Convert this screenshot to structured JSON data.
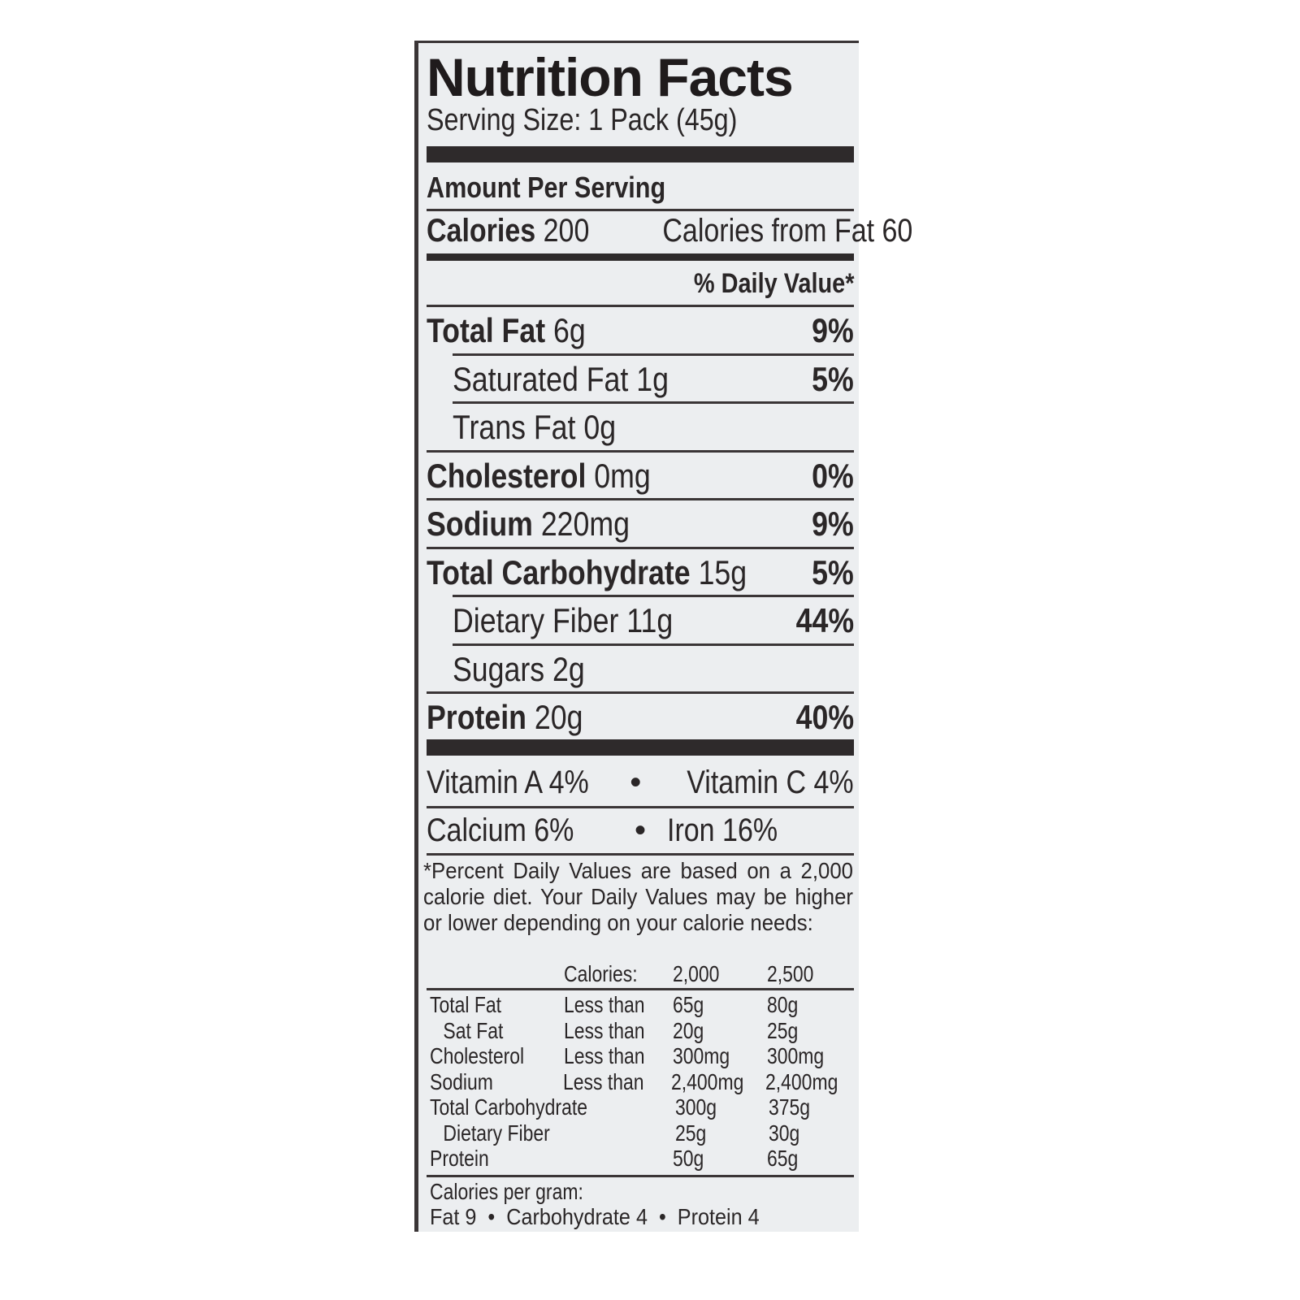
{
  "title": "Nutrition Facts",
  "serving_size": "Serving Size: 1 Pack (45g)",
  "amount_per_serving": "Amount Per Serving",
  "calories": {
    "label": "Calories",
    "value": "200",
    "from_fat": "Calories from Fat 60"
  },
  "daily_value_header": "% Daily Value*",
  "nutrients": [
    {
      "name": "Total Fat",
      "amount": "6g",
      "dv": "9%",
      "bold": true,
      "indent": false
    },
    {
      "name": "Saturated Fat",
      "amount": "1g",
      "dv": "5%",
      "bold": false,
      "indent": true
    },
    {
      "name": "Trans Fat",
      "amount": "0g",
      "dv": "",
      "bold": false,
      "indent": true
    },
    {
      "name": "Cholesterol",
      "amount": "0mg",
      "dv": "0%",
      "bold": true,
      "indent": false
    },
    {
      "name": "Sodium",
      "amount": "220mg",
      "dv": "9%",
      "bold": true,
      "indent": false
    },
    {
      "name": "Total Carbohydrate",
      "amount": "15g",
      "dv": "5%",
      "bold": true,
      "indent": false
    },
    {
      "name": "Dietary Fiber",
      "amount": "11g",
      "dv": "44%",
      "bold": false,
      "indent": true
    },
    {
      "name": "Sugars",
      "amount": "2g",
      "dv": "",
      "bold": false,
      "indent": true
    },
    {
      "name": "Protein",
      "amount": "20g",
      "dv": "40%",
      "bold": true,
      "indent": false
    }
  ],
  "vitamins": [
    {
      "left": "Vitamin A 4%",
      "right": "Vitamin C 4%"
    },
    {
      "left": "Calcium 6%",
      "right": "Iron 16%"
    }
  ],
  "bullet": "•",
  "footnote": "*Percent Daily Values are based on a 2,000 calorie diet. Your Daily Values may be higher or lower depending on your calorie needs:",
  "dv_table": {
    "header": [
      "",
      "Calories:",
      "2,000",
      "2,500"
    ],
    "rows": [
      [
        "Total Fat",
        "Less than",
        "65g",
        "80g"
      ],
      [
        "Sat Fat",
        "Less than",
        "20g",
        "25g"
      ],
      [
        "Cholesterol",
        "Less than",
        "300mg",
        "300mg"
      ],
      [
        "Sodium",
        "Less than",
        "2,400mg",
        "2,400mg"
      ],
      [
        "Total Carbohydrate",
        "",
        "300g",
        "375g"
      ],
      [
        "Dietary Fiber",
        "",
        "25g",
        "30g"
      ],
      [
        "Protein",
        "",
        "50g",
        "65g"
      ]
    ]
  },
  "calories_per_gram": {
    "label": "Calories per gram:",
    "values": "Fat 9  •  Carbohydrate 4  •  Protein 4"
  }
}
